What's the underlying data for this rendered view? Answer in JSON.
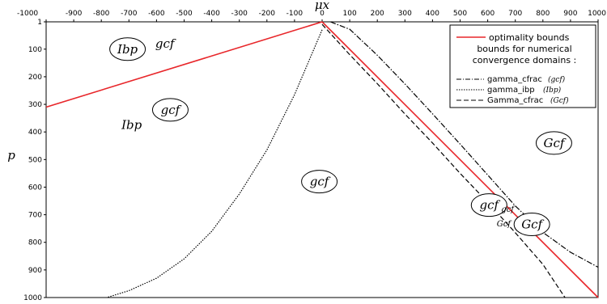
{
  "chart_data": {
    "type": "line",
    "xlabel": "μx",
    "ylabel": "p",
    "xlim": [
      -1000,
      1000
    ],
    "ylim": [
      1,
      1000
    ],
    "y_inverted": true,
    "x_ticks": [
      "-1000",
      "-900",
      "-800",
      "-700",
      "-600",
      "-500",
      "-400",
      "-300",
      "-200",
      "-100",
      "0",
      "100",
      "200",
      "300",
      "400",
      "500",
      "600",
      "700",
      "800",
      "900",
      "1000"
    ],
    "y_ticks": [
      "1",
      "100",
      "200",
      "300",
      "400",
      "500",
      "600",
      "700",
      "800",
      "900",
      "1000"
    ],
    "legend": {
      "heading": "bounds for numerical convergence domains :",
      "heading_lines": [
        "bounds for numerical",
        "convergence domains :"
      ]
    },
    "series": [
      {
        "name": "optimality bounds",
        "style": "solid",
        "color": "#e8262a",
        "segments": [
          {
            "x": [
              -1000,
              0
            ],
            "y": [
              310,
              1
            ]
          },
          {
            "x": [
              0,
              1000
            ],
            "y": [
              1,
              1000
            ]
          }
        ]
      },
      {
        "name": "gamma_cfrac",
        "abbr": "(gcf)",
        "style": "dashdot",
        "color": "#000000",
        "x": [
          30,
          100,
          200,
          300,
          400,
          500,
          600,
          700,
          800,
          900,
          1000
        ],
        "y": [
          1,
          28,
          122,
          226,
          334,
          444,
          556,
          668,
          764,
          836,
          890
        ]
      },
      {
        "name": "gamma_ibp",
        "abbr": "(Ibp)",
        "style": "dotted",
        "color": "#000000",
        "x": [
          0,
          -100,
          -200,
          -300,
          -400,
          -500,
          -600,
          -700,
          -780
        ],
        "y": [
          30,
          265,
          465,
          625,
          760,
          860,
          930,
          975,
          1000
        ]
      },
      {
        "name": "Gamma_cfrac",
        "abbr": "(Gcf)",
        "style": "dashed",
        "color": "#000000",
        "x": [
          0,
          100,
          200,
          300,
          400,
          500,
          600,
          700,
          800,
          880
        ],
        "y": [
          10,
          120,
          225,
          335,
          440,
          550,
          655,
          765,
          880,
          1000
        ]
      }
    ],
    "region_labels": [
      {
        "text": "Ibp",
        "x": -705,
        "y": 100,
        "circled": true
      },
      {
        "text": "gcf",
        "x": -570,
        "y": 80,
        "circled": false
      },
      {
        "text": "gcf",
        "x": -550,
        "y": 320,
        "circled": true
      },
      {
        "text": "Ibp",
        "x": -690,
        "y": 375,
        "circled": false
      },
      {
        "text": "gcf",
        "x": -10,
        "y": 580,
        "circled": true
      },
      {
        "text": "Gcf",
        "x": 840,
        "y": 440,
        "circled": true
      },
      {
        "text": "gcf",
        "x": 605,
        "y": 665,
        "circled": true
      },
      {
        "text": "gcf",
        "x": 672,
        "y": 680,
        "circled": false,
        "small": true
      },
      {
        "text": "Gcf",
        "x": 658,
        "y": 733,
        "circled": false,
        "small": true
      },
      {
        "text": "Gcf",
        "x": 760,
        "y": 735,
        "circled": true
      }
    ]
  }
}
